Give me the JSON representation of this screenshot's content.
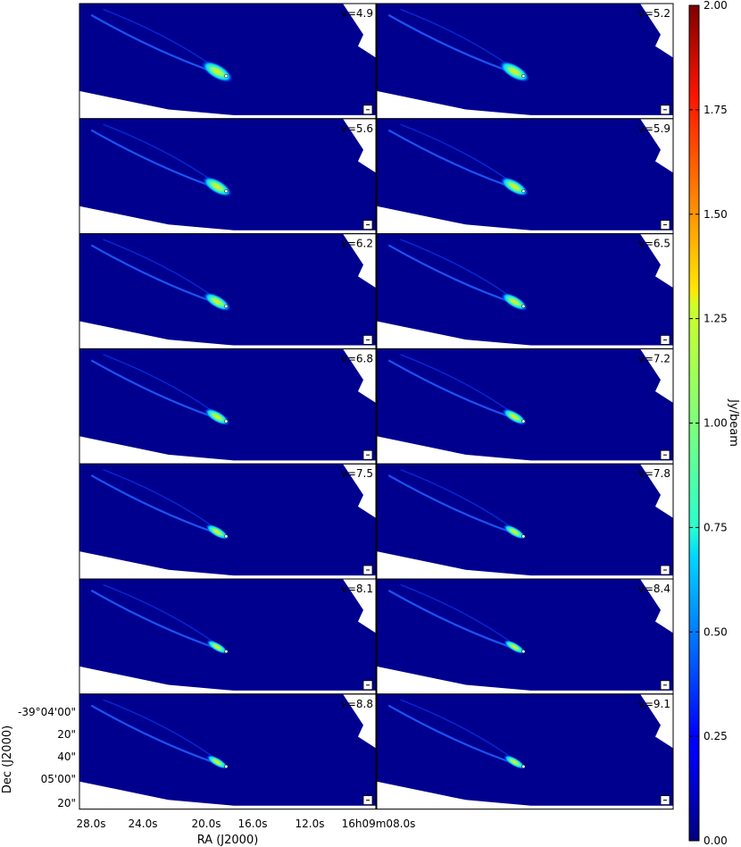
{
  "chart_data": {
    "type": "heatmap",
    "layout": {
      "rows": 7,
      "cols": 2
    },
    "panels": [
      {
        "label": "v=4.9"
      },
      {
        "label": "v=5.2"
      },
      {
        "label": "v=5.6"
      },
      {
        "label": "v=5.9"
      },
      {
        "label": "v=6.2"
      },
      {
        "label": "v=6.5"
      },
      {
        "label": "v=6.8"
      },
      {
        "label": "v=7.2"
      },
      {
        "label": "v=7.5"
      },
      {
        "label": "v=7.8"
      },
      {
        "label": "v=8.1"
      },
      {
        "label": "v=8.4"
      },
      {
        "label": "v=8.8"
      },
      {
        "label": "v=9.1"
      }
    ],
    "colorbar": {
      "label": "Jy/beam",
      "range": [
        0.0,
        2.0
      ],
      "ticks": [
        "0.00",
        "0.25",
        "0.50",
        "0.75",
        "1.00",
        "1.25",
        "1.50",
        "1.75",
        "2.00"
      ],
      "colormap": "jet"
    },
    "xaxis": {
      "label": "RA (J2000)",
      "ticks": [
        "28.0s",
        "24.0s",
        "20.0s",
        "16.0s",
        "12.0s",
        "16h09m08.0s"
      ]
    },
    "yaxis": {
      "label": "Dec (J2000)",
      "ticks": [
        "-39°04'00\"",
        "20\"",
        "40\"",
        "05'00\"",
        "20\""
      ]
    }
  }
}
